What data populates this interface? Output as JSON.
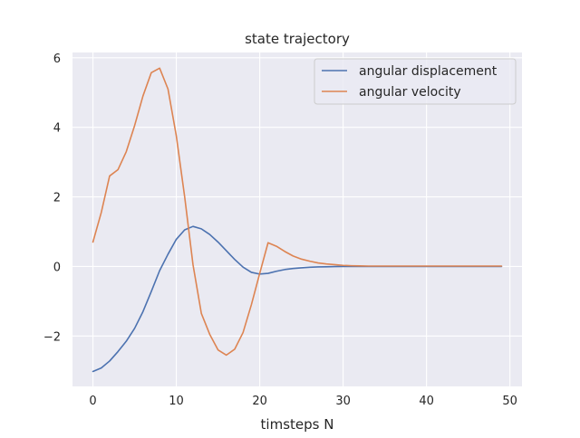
{
  "chart_data": {
    "type": "line",
    "title": "state trajectory",
    "xlabel": "timsteps N",
    "ylabel": "",
    "xlim": [
      -2.45,
      51.45
    ],
    "ylim": [
      -3.45,
      6.15
    ],
    "x_ticks": [
      0,
      10,
      20,
      30,
      40,
      50
    ],
    "x_tick_labels": [
      "0",
      "10",
      "20",
      "30",
      "40",
      "50"
    ],
    "y_ticks": [
      -2,
      0,
      2,
      4,
      6
    ],
    "y_tick_labels": [
      "−2",
      "0",
      "2",
      "4",
      "6"
    ],
    "grid": true,
    "legend_position": "top-right",
    "background_color": "#eaeaf2",
    "grid_color": "#ffffff",
    "x": [
      0,
      1,
      2,
      3,
      4,
      5,
      6,
      7,
      8,
      9,
      10,
      11,
      12,
      13,
      14,
      15,
      16,
      17,
      18,
      19,
      20,
      21,
      22,
      23,
      24,
      25,
      26,
      27,
      28,
      29,
      30,
      31,
      32,
      33,
      34,
      35,
      36,
      37,
      38,
      39,
      40,
      41,
      42,
      43,
      44,
      45,
      46,
      47,
      48,
      49
    ],
    "series": [
      {
        "name": "angular displacement",
        "color": "#4c72b0",
        "values": [
          -3.02,
          -2.92,
          -2.72,
          -2.45,
          -2.15,
          -1.78,
          -1.3,
          -0.72,
          -0.12,
          0.35,
          0.78,
          1.05,
          1.15,
          1.08,
          0.92,
          0.7,
          0.45,
          0.2,
          -0.02,
          -0.17,
          -0.22,
          -0.2,
          -0.14,
          -0.09,
          -0.06,
          -0.04,
          -0.025,
          -0.015,
          -0.01,
          -0.005,
          0.0,
          0.0,
          0.0,
          0.0,
          0.0,
          0.0,
          0.0,
          0.0,
          0.0,
          0.0,
          0.0,
          0.0,
          0.0,
          0.0,
          0.0,
          0.0,
          0.0,
          0.0,
          0.0,
          0.0
        ]
      },
      {
        "name": "angular velocity",
        "color": "#dd8452",
        "values": [
          0.7,
          1.55,
          2.6,
          2.78,
          3.3,
          4.05,
          4.9,
          5.57,
          5.7,
          5.1,
          3.75,
          2.0,
          0.05,
          -1.35,
          -1.95,
          -2.4,
          -2.55,
          -2.38,
          -1.9,
          -1.1,
          -0.2,
          0.68,
          0.58,
          0.43,
          0.3,
          0.21,
          0.15,
          0.1,
          0.07,
          0.05,
          0.03,
          0.02,
          0.015,
          0.01,
          0.01,
          0.01,
          0.01,
          0.01,
          0.01,
          0.01,
          0.01,
          0.01,
          0.01,
          0.01,
          0.01,
          0.01,
          0.01,
          0.01,
          0.01,
          0.01
        ]
      }
    ]
  }
}
